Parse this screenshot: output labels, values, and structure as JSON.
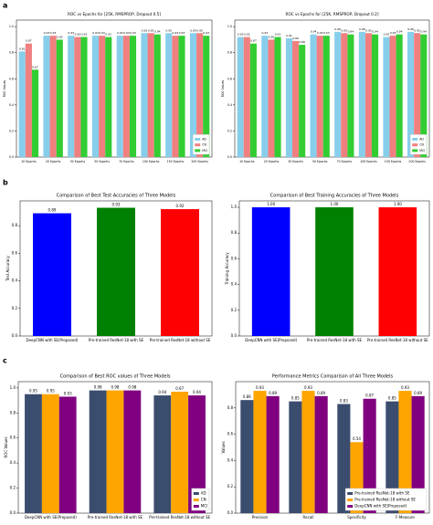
{
  "panels": [
    "a",
    "b",
    "c"
  ],
  "chart_data": [
    {
      "type": "bar",
      "title": "ROC vs Epochs for [25K, RMSPROP, Dropout 0.5]",
      "ylabel": "ROC Values",
      "categories": [
        "10 Epochs",
        "20 Epochs",
        "30 Epochs",
        "50 Epochs",
        "70 Epochs",
        "100 Epochs",
        "150 Epochs",
        "200 Epochs"
      ],
      "series": [
        {
          "name": "AD",
          "color": "#87ceeb",
          "values": [
            0.81,
            0.93,
            0.93,
            0.93,
            0.93,
            0.95,
            0.95,
            0.95
          ]
        },
        {
          "name": "CN",
          "color": "#f08080",
          "values": [
            0.87,
            0.93,
            0.92,
            0.93,
            0.93,
            0.95,
            0.93,
            0.95
          ]
        },
        {
          "name": "MCI",
          "color": "#32cd32",
          "values": [
            0.67,
            0.9,
            0.92,
            0.92,
            0.93,
            0.94,
            0.93,
            0.93
          ],
          "value_labels": [
            "0.67",
            "0.90",
            "0.92",
            "0.92",
            "0.93",
            "0.94",
            "0.93",
            "0.93"
          ]
        }
      ],
      "ylim": [
        0,
        1.05
      ],
      "yticks": [
        {
          "value": 0,
          "label": "0.0"
        },
        0.2,
        0.4,
        0.6,
        0.8,
        {
          "value": 1,
          "label": "1.0"
        }
      ],
      "legend": "lower right"
    },
    {
      "type": "bar",
      "title": "ROC vs Epochs for [25K, RMSPROP, Dropout 0.2]",
      "ylabel": "ROC Values",
      "categories": [
        "10 Epochs",
        "20 Epochs",
        "30 Epochs",
        "50 Epochs",
        "70 Epochs",
        "100 Epochs",
        "150 Epochs",
        "200 Epochs"
      ],
      "series": [
        {
          "name": "AD",
          "color": "#87ceeb",
          "values": [
            0.92,
            0.93,
            0.91,
            0.94,
            0.96,
            0.96,
            0.92,
            0.96
          ]
        },
        {
          "name": "CN",
          "color": "#f08080",
          "values": [
            0.92,
            0.9,
            0.89,
            0.93,
            0.95,
            0.95,
            0.93,
            0.95
          ],
          "value_labels": [
            "0.92",
            "0.90",
            "0.89",
            "0.93",
            "0.95",
            "0.95",
            "0.93",
            "0.95"
          ]
        },
        {
          "name": "MCI",
          "color": "#32cd32",
          "values": [
            0.87,
            0.92,
            0.86,
            0.93,
            0.94,
            0.94,
            0.94,
            0.94
          ]
        }
      ],
      "ylim": [
        0,
        1.05
      ],
      "yticks": [
        {
          "value": 0,
          "label": "0.0"
        },
        0.2,
        0.4,
        0.6,
        0.8,
        {
          "value": 1,
          "label": "1.0"
        }
      ],
      "legend": "lower right"
    },
    {
      "type": "bar",
      "title": "Comparison of Best Test Accuracies of Three Models",
      "ylabel": "Test Accuracy",
      "categories": [
        "DeepCNN with SE(Proposed)",
        "Pre-trained ResNet-18 with SE",
        "Pre-trained ResNet-18 without SE"
      ],
      "values": [
        0.89,
        0.93,
        0.92
      ],
      "colors": [
        "#0000ff",
        "#008000",
        "#ff0000"
      ],
      "ylim": [
        0,
        0.98
      ],
      "yticks": [
        {
          "value": 0,
          "label": "0.0"
        },
        0.2,
        0.4,
        0.6,
        0.8
      ]
    },
    {
      "type": "bar",
      "title": "Comparison of Best Training Accuracies of Three Models",
      "ylabel": "Training Accuracy",
      "categories": [
        "DeepCNN with SE(Proposed)",
        "Pre-trained ResNet-18 with SE",
        "Pre-trained ResNet-18 without SE"
      ],
      "values": [
        1,
        1,
        1
      ],
      "value_labels": [
        "1.00",
        "1.00",
        "1.00"
      ],
      "colors": [
        "#0000ff",
        "#008000",
        "#ff0000"
      ],
      "ylim": [
        0,
        1.05
      ],
      "yticks": [
        {
          "value": 0,
          "label": "0.0"
        },
        0.2,
        0.4,
        0.6,
        0.8,
        {
          "value": 1,
          "label": "1.0"
        }
      ]
    },
    {
      "type": "bar",
      "title": "Comparison of Best ROC values of Three Models",
      "ylabel": "ROC Values",
      "categories": [
        "DeepCNN with SE(Proposed)",
        "Pre-trained ResNet-18 with SE",
        "Pre-trained ResNet-18 without SE"
      ],
      "series": [
        {
          "name": "AD",
          "color": "#3b4d6e",
          "values": [
            0.95,
            0.98,
            0.94
          ]
        },
        {
          "name": "CN",
          "color": "#ffa500",
          "values": [
            0.95,
            0.98,
            0.97
          ]
        },
        {
          "name": "MCI",
          "color": "#800080",
          "values": [
            0.93,
            0.98,
            0.94
          ]
        }
      ],
      "ylim": [
        0,
        1.05
      ],
      "yticks": [
        {
          "value": 0,
          "label": "0.0"
        },
        0.2,
        0.4,
        0.6,
        0.8,
        {
          "value": 1,
          "label": "1.0"
        }
      ],
      "legend": "lower right"
    },
    {
      "type": "bar",
      "title": "Performance Metrics Comparison of All Three Models",
      "ylabel": "Values",
      "categories": [
        "Precision",
        "Recall",
        "Specificity",
        "F-Measure"
      ],
      "series": [
        {
          "name": "Pre-trained ResNet-18 with SE",
          "color": "#3b4d6e",
          "values": [
            0.86,
            0.85,
            0.83,
            0.85
          ]
        },
        {
          "name": "Pre-trained ResNet-18 without SE",
          "color": "#ffa500",
          "values": [
            0.93,
            0.93,
            0.54,
            0.93
          ]
        },
        {
          "name": "DeepCNN with SE(Proposed)",
          "color": "#800080",
          "values": [
            0.89,
            0.89,
            0.87,
            0.89
          ]
        }
      ],
      "ylim": [
        0,
        1.0
      ],
      "yticks": [
        {
          "value": 0,
          "label": "0.0"
        },
        0.2,
        0.4,
        0.6,
        0.8
      ],
      "legend": "lower right"
    }
  ]
}
